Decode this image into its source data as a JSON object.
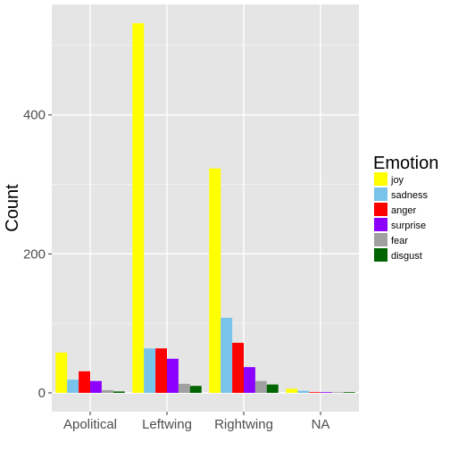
{
  "chart_data": {
    "type": "bar",
    "categories": [
      "Apolitical",
      "Leftwing",
      "Rightwing",
      "NA"
    ],
    "series": [
      {
        "name": "joy",
        "color": "#FFFF00",
        "values": [
          58,
          532,
          323,
          6
        ]
      },
      {
        "name": "sadness",
        "color": "#77C3EA",
        "values": [
          19,
          64,
          108,
          3
        ]
      },
      {
        "name": "anger",
        "color": "#FF0000",
        "values": [
          31,
          64,
          72,
          1
        ]
      },
      {
        "name": "surprise",
        "color": "#8B00FF",
        "values": [
          17,
          49,
          37,
          1
        ]
      },
      {
        "name": "fear",
        "color": "#A0A0A0",
        "values": [
          4,
          13,
          17,
          1
        ]
      },
      {
        "name": "disgust",
        "color": "#006400",
        "values": [
          2,
          10,
          12,
          1
        ]
      }
    ],
    "ylabel": "Count",
    "xlabel": "",
    "y_ticks": [
      0,
      200,
      400
    ],
    "ylim": [
      -27,
      559
    ],
    "legend_title": "Emotion",
    "legend_position": "right",
    "grid": true,
    "background": "#E5E5E5"
  }
}
